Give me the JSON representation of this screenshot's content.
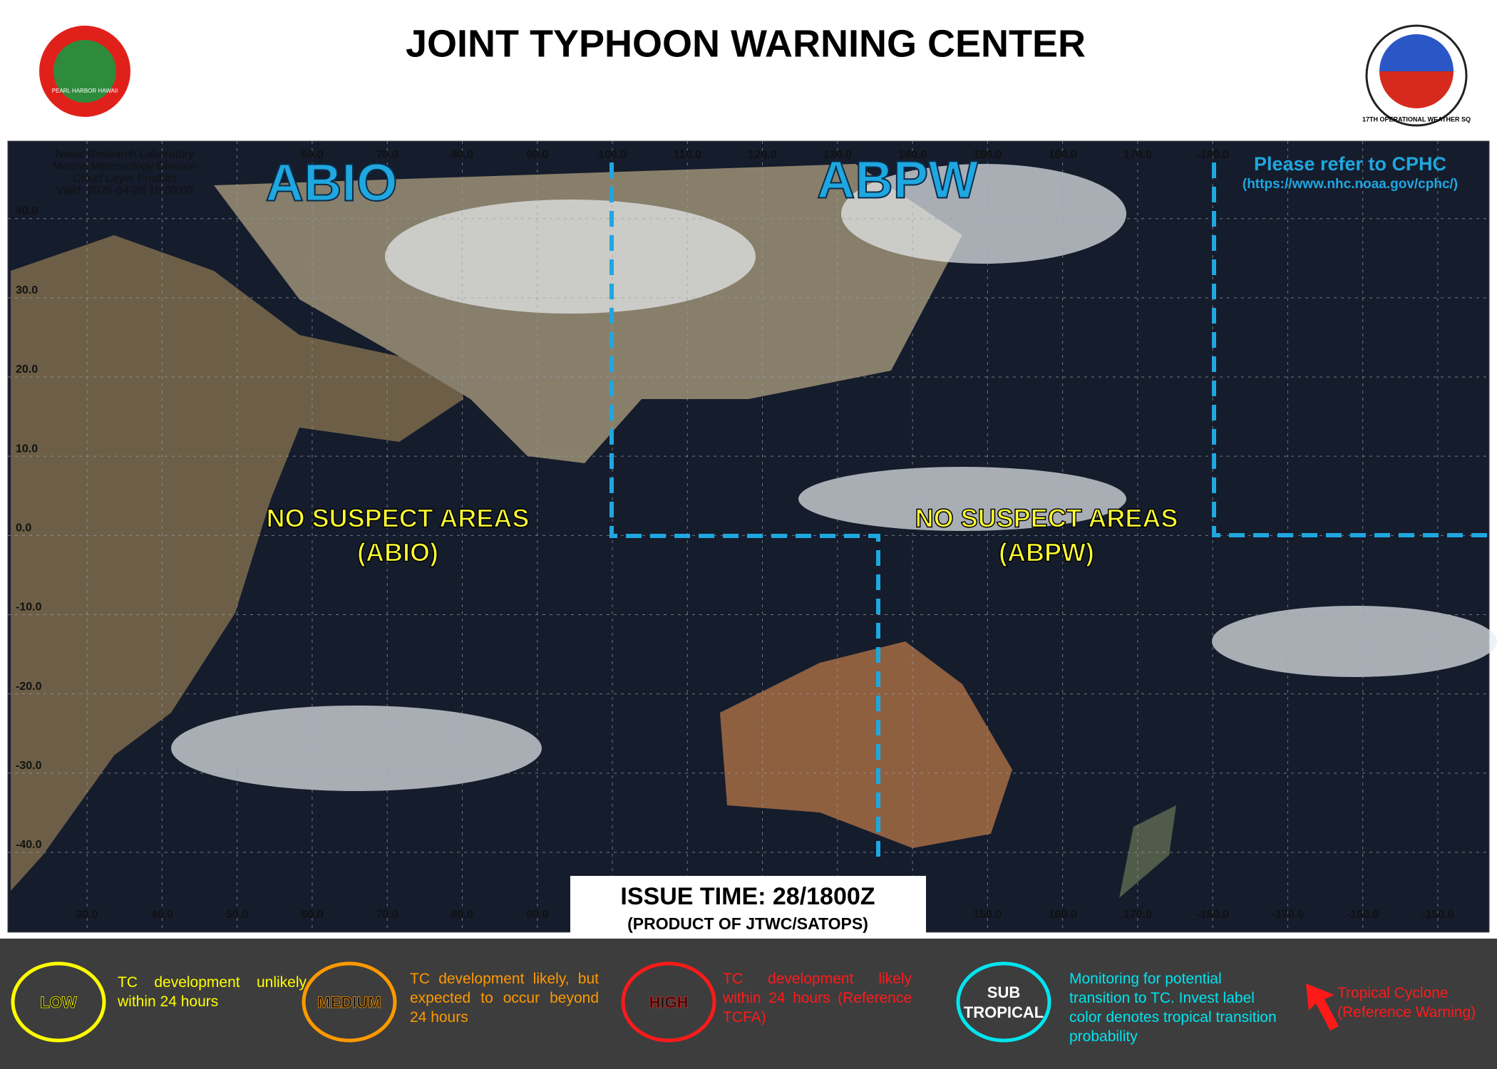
{
  "header": {
    "title": "JOINT TYPHOON WARNING CENTER",
    "left_logo": "PEARL HARBOR HAWAII",
    "right_logo": "17TH OPERATIONAL WEATHER SQ"
  },
  "map": {
    "source_lines": [
      "Naval Research Laboratory",
      "Marine Meteorology Division",
      "Cloud Layer Product",
      "Valid: 2025-04-28 16:00:00"
    ],
    "top_lon_labels": [
      "60.0",
      "70.0",
      "80.0",
      "90.0",
      "100.0",
      "110.0",
      "120.0",
      "130.0",
      "140.0",
      "150.0",
      "160.0",
      "170.0",
      "-180.0"
    ],
    "bottom_lon_labels": [
      "30.0",
      "40.0",
      "50.0",
      "60.0",
      "70.0",
      "80.0",
      "90.0",
      "150.0",
      "160.0",
      "170.0",
      "-180.0",
      "-170.0",
      "-160.0",
      "-150.0"
    ],
    "lat_labels": [
      "40.0",
      "30.0",
      "20.0",
      "10.0",
      "0.0",
      "-10.0",
      "-20.0",
      "-30.0",
      "-40.0"
    ],
    "regions": [
      {
        "name": "ABIO",
        "status": "NO SUSPECT AREAS",
        "code": "(ABIO)"
      },
      {
        "name": "ABPW",
        "status": "NO SUSPECT AREAS",
        "code": "(ABPW)"
      }
    ],
    "cphc_note": "Please refer to CPHC",
    "cphc_url": "(https://www.nhc.noaa.gov/cphc/)",
    "issue_time": "ISSUE TIME: 28/1800Z",
    "product": "(PRODUCT OF JTWC/SATOPS)"
  },
  "legend": [
    {
      "label": "LOW",
      "text": "TC development unlikely within 24 hours",
      "color": "#ffff00"
    },
    {
      "label": "MEDIUM",
      "text": "TC development likely, but expected to occur beyond 24 hours",
      "color": "#ff9900"
    },
    {
      "label": "HIGH",
      "text": "TC development likely within 24 hours (Reference TCFA)",
      "color": "#ff1a1a"
    },
    {
      "label": "SUB TROPICAL",
      "text": "Monitoring for potential transition to TC. Invest label color denotes tropical transition probability",
      "color": "#00e5ee"
    },
    {
      "label": "Tropical Cyclone (Reference Warning)",
      "color": "#ff1a1a"
    }
  ]
}
